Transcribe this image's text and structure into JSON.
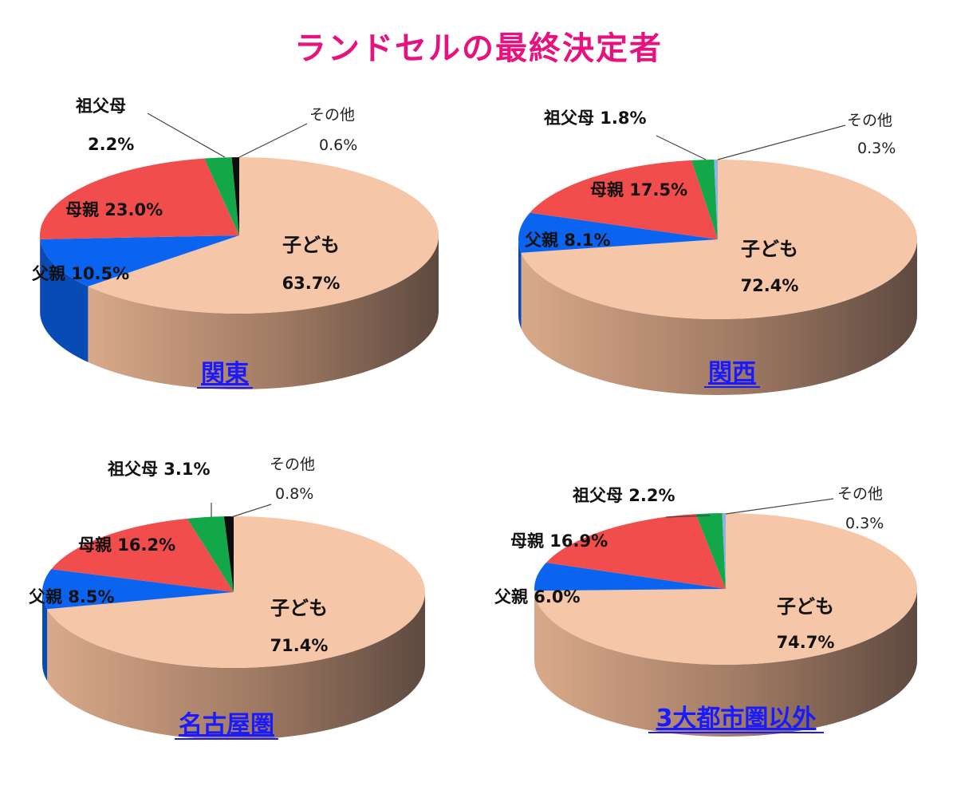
{
  "title": "ランドセルの最終決定者",
  "colors": {
    "title": "#e6137f",
    "region_label": "#1a1aff",
    "子ども": "#f5c6a8",
    "父親": "#0a64f0",
    "母親": "#f24d4d",
    "祖父母": "#12a84a",
    "その他": "#0d0d0d",
    "その他_alt": "#8ab4e8"
  },
  "chart_data": [
    {
      "type": "pie",
      "region": "関東",
      "categories": [
        "子ども",
        "父親",
        "母親",
        "祖父母",
        "その他"
      ],
      "values": [
        63.7,
        10.5,
        23.0,
        2.2,
        0.6
      ],
      "value_labels": [
        "63.7%",
        "10.5%",
        "23.0%",
        "2.2%",
        "0.6%"
      ],
      "other_color": "#0d0d0d"
    },
    {
      "type": "pie",
      "region": "関西",
      "categories": [
        "子ども",
        "父親",
        "母親",
        "祖父母",
        "その他"
      ],
      "values": [
        72.4,
        8.1,
        17.5,
        1.8,
        0.3
      ],
      "value_labels": [
        "72.4%",
        "8.1%",
        "17.5%",
        "1.8%",
        "0.3%"
      ],
      "other_color": "#8ab4e8"
    },
    {
      "type": "pie",
      "region": "名古屋圏",
      "categories": [
        "子ども",
        "父親",
        "母親",
        "祖父母",
        "その他"
      ],
      "values": [
        71.4,
        8.5,
        16.2,
        3.1,
        0.8
      ],
      "value_labels": [
        "71.4%",
        "8.5%",
        "16.2%",
        "3.1%",
        "0.8%"
      ],
      "other_color": "#0d0d0d"
    },
    {
      "type": "pie",
      "region": "3大都市圏以外",
      "categories": [
        "子ども",
        "父親",
        "母親",
        "祖父母",
        "その他"
      ],
      "values": [
        74.7,
        6.0,
        16.9,
        2.2,
        0.3
      ],
      "value_labels": [
        "74.7%",
        "6.0%",
        "16.9%",
        "2.2%",
        "0.3%"
      ],
      "other_color": "#8ab4e8"
    }
  ]
}
